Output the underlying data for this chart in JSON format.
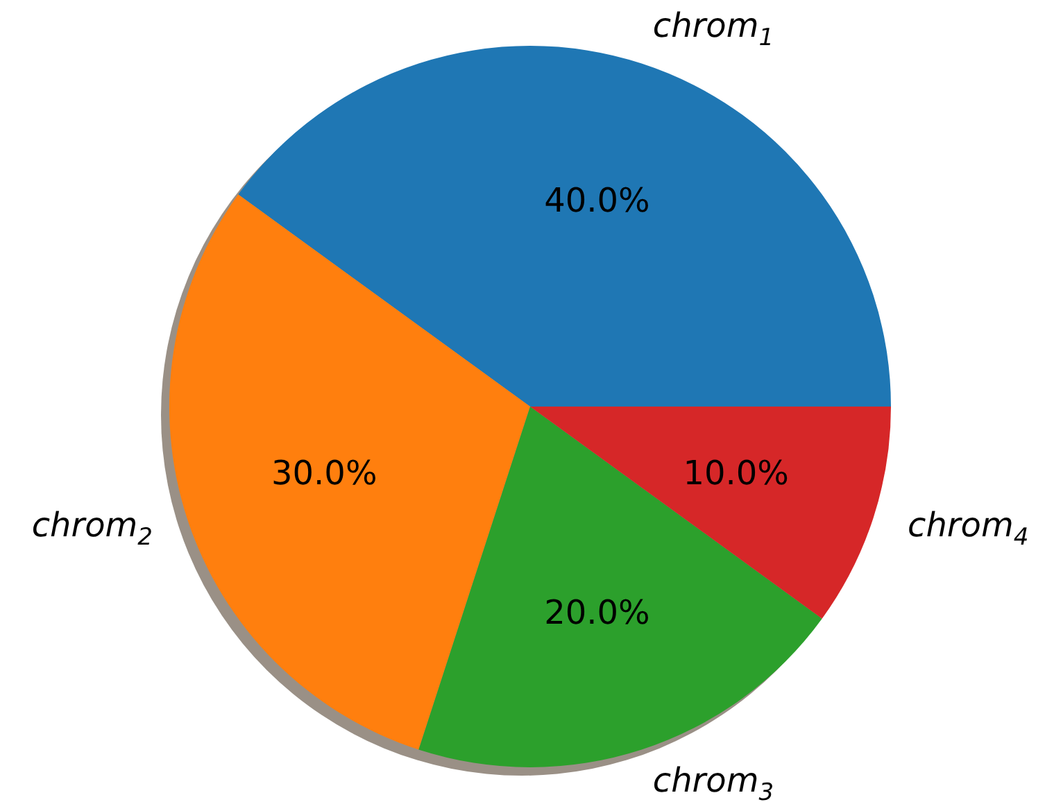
{
  "chart_data": {
    "type": "pie",
    "categories": [
      "chrom$_{1}$",
      "chrom$_{2}$",
      "chrom$_{3}$",
      "chrom$_{4}$"
    ],
    "values": [
      40,
      30,
      20,
      10
    ],
    "colors": [
      "#1f77b4",
      "#ff7f0e",
      "#2ca02c",
      "#d62728"
    ],
    "value_labels": [
      "40.0%",
      "30.0%",
      "20.0%",
      "10.0%"
    ]
  }
}
